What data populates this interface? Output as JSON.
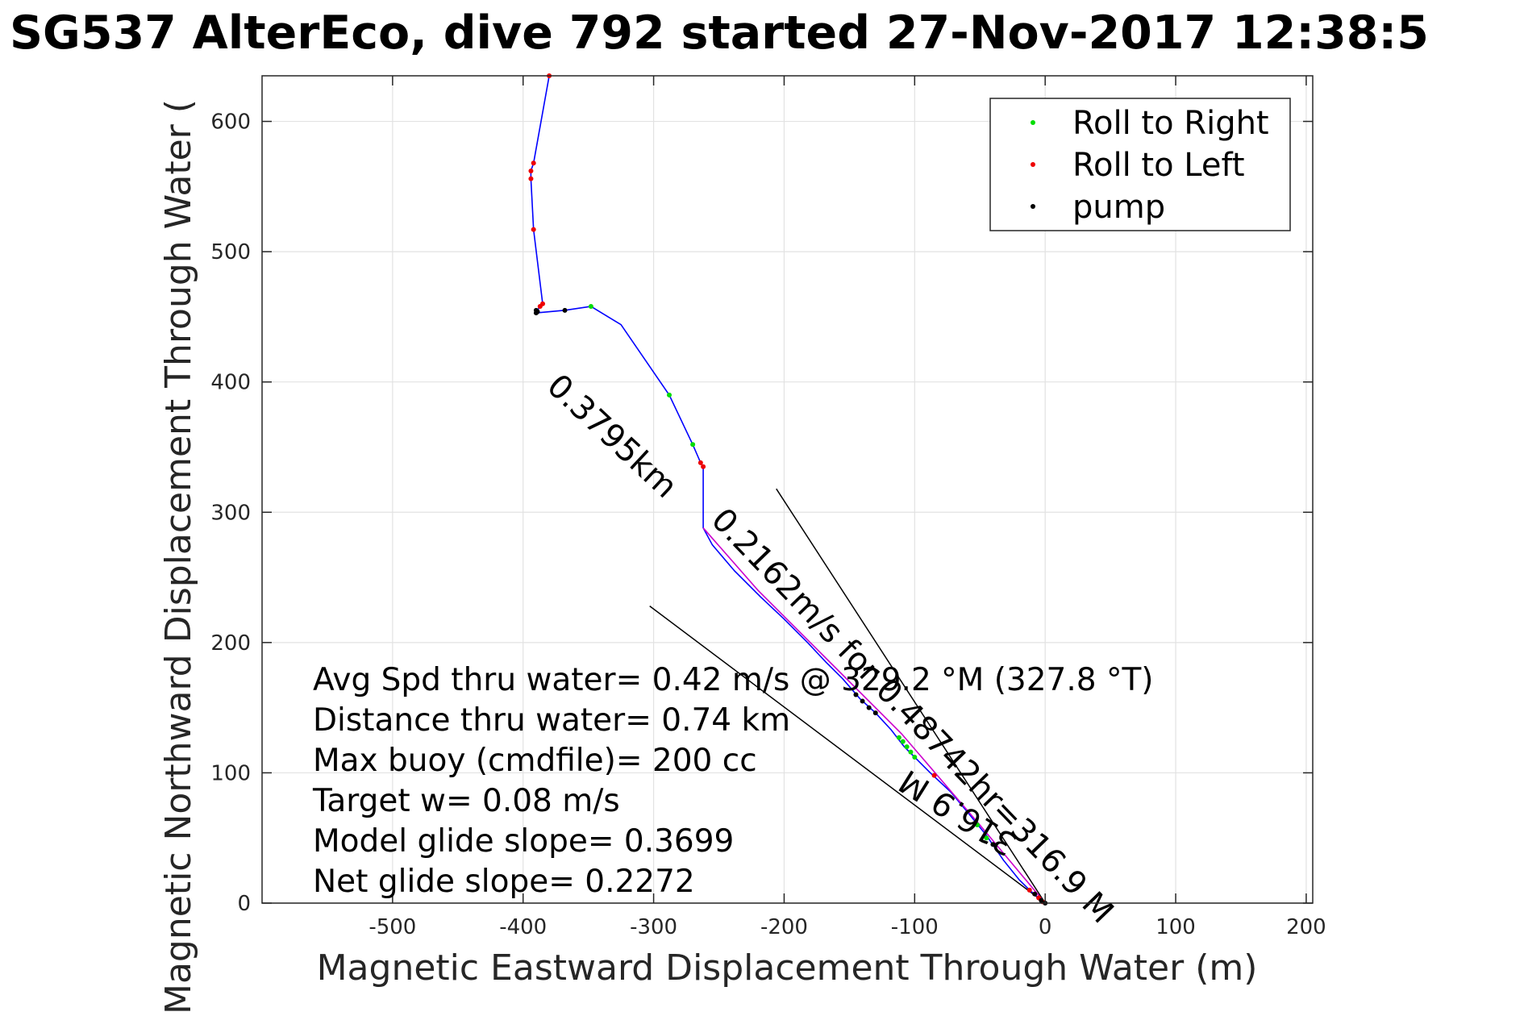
{
  "chart_data": {
    "type": "line",
    "title": "SG537 AlterEco, dive 792 started 27-Nov-2017 12:38:5",
    "xlabel": "Magnetic Eastward Displacement Through Water (m)",
    "ylabel": "Magnetic Northward Displacement Through Water (",
    "xlim": [
      -600,
      205
    ],
    "ylim": [
      0,
      635
    ],
    "x_ticks": [
      -500,
      -400,
      -300,
      -200,
      -100,
      0,
      100,
      200
    ],
    "y_ticks": [
      0,
      100,
      200,
      300,
      400,
      500,
      600
    ],
    "grid": true,
    "legend_placement": "top-right",
    "colors": {
      "track": "#0000ff",
      "roll_right": "#00dd00",
      "roll_left": "#ee0000",
      "pump": "#000000",
      "model_track": "#cc00cc",
      "guide_lines": "#000000"
    },
    "series": [
      {
        "key": "track",
        "values": [
          [
            0,
            0
          ],
          [
            -5,
            4
          ],
          [
            -12,
            10
          ],
          [
            -20,
            18
          ],
          [
            -32,
            33
          ],
          [
            -45,
            52
          ],
          [
            -58,
            68
          ],
          [
            -72,
            85
          ],
          [
            -88,
            100
          ],
          [
            -100,
            112
          ],
          [
            -108,
            120
          ],
          [
            -118,
            133
          ],
          [
            -130,
            146
          ],
          [
            -142,
            157
          ],
          [
            -155,
            172
          ],
          [
            -168,
            185
          ],
          [
            -182,
            200
          ],
          [
            -200,
            218
          ],
          [
            -218,
            235
          ],
          [
            -238,
            255
          ],
          [
            -255,
            275
          ],
          [
            -262,
            288
          ],
          [
            -262,
            335
          ],
          [
            -264,
            338
          ],
          [
            -270,
            352
          ],
          [
            -288,
            390
          ],
          [
            -325,
            444
          ],
          [
            -348,
            458
          ],
          [
            -368,
            455
          ],
          [
            -390,
            453
          ],
          [
            -389,
            455
          ],
          [
            -387,
            458
          ],
          [
            -385,
            460
          ],
          [
            -392,
            517
          ],
          [
            -394,
            556
          ],
          [
            -394,
            562
          ],
          [
            -392,
            568
          ],
          [
            -380,
            635
          ]
        ]
      },
      {
        "key": "model_track",
        "values": [
          [
            0,
            0
          ],
          [
            -50,
            60
          ],
          [
            -110,
            130
          ],
          [
            -170,
            190
          ],
          [
            -220,
            240
          ],
          [
            -262,
            288
          ]
        ]
      },
      {
        "name": "Roll to Right",
        "key": "roll_right",
        "values": [
          [
            -45,
            50
          ],
          [
            -52,
            60
          ],
          [
            -100,
            112
          ],
          [
            -103,
            116
          ],
          [
            -106,
            120
          ],
          [
            -109,
            124
          ],
          [
            -112,
            127
          ],
          [
            -270,
            352
          ],
          [
            -288,
            390
          ],
          [
            -348,
            458
          ]
        ]
      },
      {
        "name": "Roll to Left",
        "key": "roll_left",
        "values": [
          [
            -2,
            1
          ],
          [
            -5,
            4
          ],
          [
            -8,
            7
          ],
          [
            -12,
            10
          ],
          [
            -85,
            98
          ],
          [
            -262,
            335
          ],
          [
            -264,
            338
          ],
          [
            -385,
            460
          ],
          [
            -387,
            458
          ],
          [
            -392,
            517
          ],
          [
            -394,
            556
          ],
          [
            -394,
            562
          ],
          [
            -392,
            568
          ],
          [
            -380,
            635
          ]
        ]
      },
      {
        "name": "pump",
        "key": "pump",
        "values": [
          [
            0,
            0
          ],
          [
            -3,
            2
          ],
          [
            -8,
            7
          ],
          [
            -40,
            45
          ],
          [
            -130,
            146
          ],
          [
            -135,
            150
          ],
          [
            -140,
            155
          ],
          [
            -145,
            160
          ],
          [
            -368,
            455
          ],
          [
            -390,
            453
          ],
          [
            -390,
            455
          ],
          [
            -389,
            454
          ]
        ]
      }
    ],
    "guide_lines": [
      {
        "from": [
          0,
          0
        ],
        "to": [
          -303,
          228
        ]
      },
      {
        "from": [
          0,
          0
        ],
        "to": [
          -206,
          318
        ]
      }
    ],
    "rotated_annotations": [
      {
        "text": "0.3795km",
        "anchor": [
          -383,
          395
        ],
        "angle_deg": 43
      },
      {
        "text": "0.2162m/s for 0.48742hr=316.9 M",
        "anchor": [
          -257,
          293
        ],
        "angle_deg": 46
      },
      {
        "text": "316.9 M",
        "anchor": [
          -20,
          50
        ],
        "angle_deg": 212
      }
    ],
    "annotations": [
      "Avg Spd thru water=  0.42 m/s @ 329.2 °M (327.8 °T)",
      "Distance thru water=  0.74 km",
      "Max buoy (cmdfile)= 200 cc",
      "Target w= 0.08 m/s",
      "Model glide slope= 0.3699",
      "Net glide slope= 0.2272"
    ]
  }
}
